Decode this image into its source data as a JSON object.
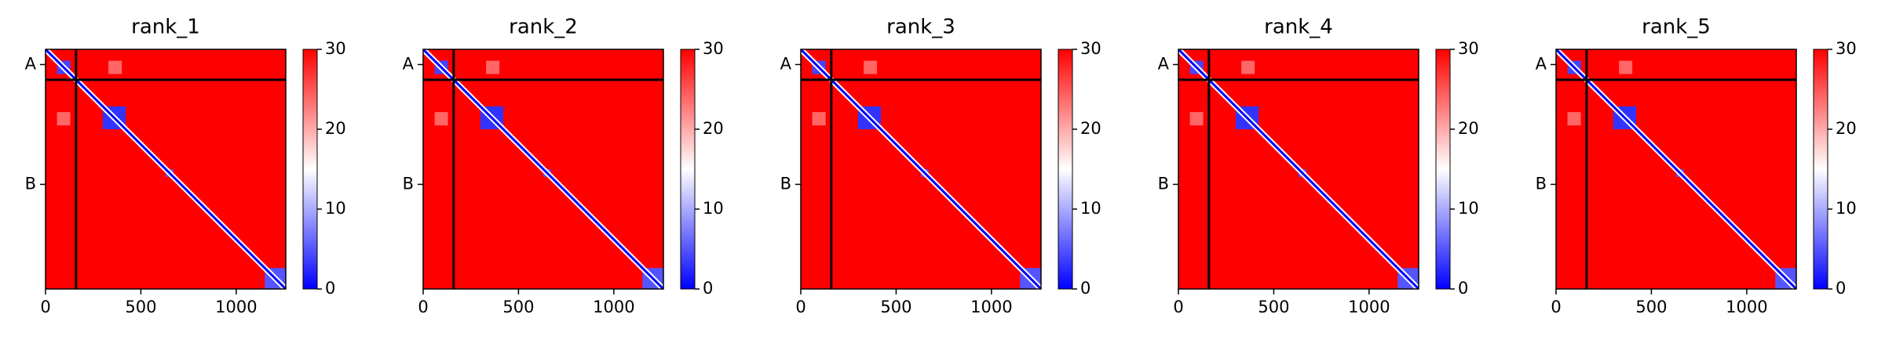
{
  "chart_data": [
    {
      "type": "heatmap",
      "title": "rank_1",
      "xlim": [
        0,
        1260
      ],
      "xticks": [
        0,
        500,
        1000
      ],
      "ylim": [
        1260,
        0
      ],
      "yticks": [
        {
          "value": 80,
          "label": "A"
        },
        {
          "value": 710,
          "label": "B"
        }
      ],
      "chain_breaks": [
        160
      ],
      "background": 30,
      "diagonal_value": 0,
      "blocks": [
        {
          "x": [
            60,
            130
          ],
          "y": [
            60,
            130
          ],
          "value": 4
        },
        {
          "x": [
            300,
            420
          ],
          "y": [
            300,
            420
          ],
          "value": 3
        },
        {
          "x": [
            630,
            670
          ],
          "y": [
            630,
            670
          ],
          "value": 5
        },
        {
          "x": [
            1150,
            1260
          ],
          "y": [
            1150,
            1260
          ],
          "value": 5
        },
        {
          "x": [
            330,
            400
          ],
          "y": [
            60,
            130
          ],
          "value": 24
        },
        {
          "x": [
            60,
            130
          ],
          "y": [
            330,
            400
          ],
          "value": 24
        }
      ],
      "clim": [
        0,
        30
      ],
      "cticks": [
        0,
        10,
        20,
        30
      ],
      "colormap": [
        "#0000ff",
        "#ffffff",
        "#ff0000"
      ]
    },
    {
      "type": "heatmap",
      "title": "rank_2",
      "xlim": [
        0,
        1260
      ],
      "xticks": [
        0,
        500,
        1000
      ],
      "ylim": [
        1260,
        0
      ],
      "yticks": [
        {
          "value": 80,
          "label": "A"
        },
        {
          "value": 710,
          "label": "B"
        }
      ],
      "chain_breaks": [
        160
      ],
      "background": 30,
      "diagonal_value": 0,
      "blocks": [
        {
          "x": [
            60,
            130
          ],
          "y": [
            60,
            130
          ],
          "value": 4
        },
        {
          "x": [
            300,
            420
          ],
          "y": [
            300,
            420
          ],
          "value": 3
        },
        {
          "x": [
            630,
            670
          ],
          "y": [
            630,
            670
          ],
          "value": 5
        },
        {
          "x": [
            1150,
            1260
          ],
          "y": [
            1150,
            1260
          ],
          "value": 5
        },
        {
          "x": [
            330,
            400
          ],
          "y": [
            60,
            130
          ],
          "value": 24
        },
        {
          "x": [
            60,
            130
          ],
          "y": [
            330,
            400
          ],
          "value": 24
        }
      ],
      "clim": [
        0,
        30
      ],
      "cticks": [
        0,
        10,
        20,
        30
      ],
      "colormap": [
        "#0000ff",
        "#ffffff",
        "#ff0000"
      ]
    },
    {
      "type": "heatmap",
      "title": "rank_3",
      "xlim": [
        0,
        1260
      ],
      "xticks": [
        0,
        500,
        1000
      ],
      "ylim": [
        1260,
        0
      ],
      "yticks": [
        {
          "value": 80,
          "label": "A"
        },
        {
          "value": 710,
          "label": "B"
        }
      ],
      "chain_breaks": [
        160
      ],
      "background": 30,
      "diagonal_value": 0,
      "blocks": [
        {
          "x": [
            60,
            130
          ],
          "y": [
            60,
            130
          ],
          "value": 4
        },
        {
          "x": [
            300,
            420
          ],
          "y": [
            300,
            420
          ],
          "value": 3
        },
        {
          "x": [
            630,
            670
          ],
          "y": [
            630,
            670
          ],
          "value": 5
        },
        {
          "x": [
            1150,
            1260
          ],
          "y": [
            1150,
            1260
          ],
          "value": 5
        },
        {
          "x": [
            330,
            400
          ],
          "y": [
            60,
            130
          ],
          "value": 24
        },
        {
          "x": [
            60,
            130
          ],
          "y": [
            330,
            400
          ],
          "value": 24
        }
      ],
      "clim": [
        0,
        30
      ],
      "cticks": [
        0,
        10,
        20,
        30
      ],
      "colormap": [
        "#0000ff",
        "#ffffff",
        "#ff0000"
      ]
    },
    {
      "type": "heatmap",
      "title": "rank_4",
      "xlim": [
        0,
        1260
      ],
      "xticks": [
        0,
        500,
        1000
      ],
      "ylim": [
        1260,
        0
      ],
      "yticks": [
        {
          "value": 80,
          "label": "A"
        },
        {
          "value": 710,
          "label": "B"
        }
      ],
      "chain_breaks": [
        160
      ],
      "background": 30,
      "diagonal_value": 0,
      "blocks": [
        {
          "x": [
            60,
            130
          ],
          "y": [
            60,
            130
          ],
          "value": 4
        },
        {
          "x": [
            300,
            420
          ],
          "y": [
            300,
            420
          ],
          "value": 3
        },
        {
          "x": [
            630,
            670
          ],
          "y": [
            630,
            670
          ],
          "value": 5
        },
        {
          "x": [
            1150,
            1260
          ],
          "y": [
            1150,
            1260
          ],
          "value": 5
        },
        {
          "x": [
            330,
            400
          ],
          "y": [
            60,
            130
          ],
          "value": 24
        },
        {
          "x": [
            60,
            130
          ],
          "y": [
            330,
            400
          ],
          "value": 24
        }
      ],
      "clim": [
        0,
        30
      ],
      "cticks": [
        0,
        10,
        20,
        30
      ],
      "colormap": [
        "#0000ff",
        "#ffffff",
        "#ff0000"
      ]
    },
    {
      "type": "heatmap",
      "title": "rank_5",
      "xlim": [
        0,
        1260
      ],
      "xticks": [
        0,
        500,
        1000
      ],
      "ylim": [
        1260,
        0
      ],
      "yticks": [
        {
          "value": 80,
          "label": "A"
        },
        {
          "value": 710,
          "label": "B"
        }
      ],
      "chain_breaks": [
        160
      ],
      "background": 30,
      "diagonal_value": 0,
      "blocks": [
        {
          "x": [
            60,
            130
          ],
          "y": [
            60,
            130
          ],
          "value": 4
        },
        {
          "x": [
            300,
            420
          ],
          "y": [
            300,
            420
          ],
          "value": 3
        },
        {
          "x": [
            630,
            670
          ],
          "y": [
            630,
            670
          ],
          "value": 5
        },
        {
          "x": [
            1150,
            1260
          ],
          "y": [
            1150,
            1260
          ],
          "value": 5
        },
        {
          "x": [
            330,
            400
          ],
          "y": [
            60,
            130
          ],
          "value": 24
        },
        {
          "x": [
            60,
            130
          ],
          "y": [
            330,
            400
          ],
          "value": 24
        }
      ],
      "clim": [
        0,
        30
      ],
      "cticks": [
        0,
        10,
        20,
        30
      ],
      "colormap": [
        "#0000ff",
        "#ffffff",
        "#ff0000"
      ]
    }
  ]
}
